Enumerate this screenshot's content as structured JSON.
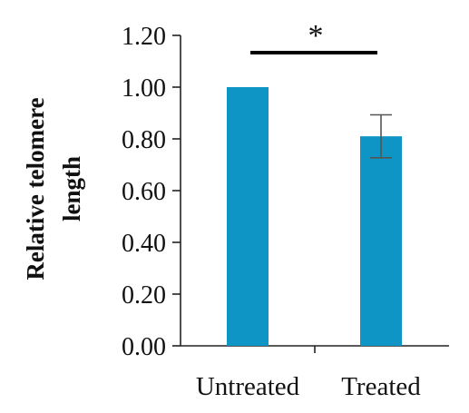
{
  "chart_data": {
    "type": "bar",
    "categories": [
      "Untreated",
      "Treated"
    ],
    "values": [
      1.0,
      0.81
    ],
    "errors": [
      0.0,
      0.083
    ],
    "ylabel_lines": [
      "Relative telomere",
      "length"
    ],
    "ylim": [
      0,
      1.2
    ],
    "yticks": [
      "0.00",
      "0.20",
      "0.40",
      "0.60",
      "0.80",
      "1.00",
      "1.20"
    ],
    "ytick_values": [
      0,
      0.2,
      0.4,
      0.6,
      0.8,
      1.0,
      1.2
    ],
    "significance": {
      "label": "*",
      "between": [
        "Untreated",
        "Treated"
      ]
    },
    "grid": false,
    "bar_color": "#0f95c5",
    "axis_color": "#222222"
  }
}
